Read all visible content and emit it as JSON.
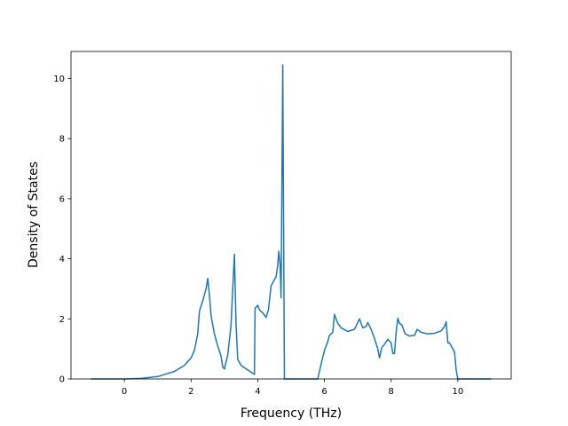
{
  "chart_data": {
    "type": "line",
    "title": "",
    "xlabel": "Frequency (THz)",
    "ylabel": "Density of States",
    "xlim": [
      -1.6,
      11.6
    ],
    "ylim": [
      0,
      10.9
    ],
    "x_ticks": [
      0,
      2,
      4,
      6,
      8,
      10
    ],
    "y_ticks": [
      0,
      2,
      4,
      6,
      8,
      10
    ],
    "grid": false,
    "legend": "none",
    "colors": {
      "line": "#1f77b4",
      "axes": "#000000",
      "background": "#ffffff"
    },
    "series": [
      {
        "points": [
          [
            -1.0,
            0.0
          ],
          [
            0.0,
            0.0
          ],
          [
            0.5,
            0.02
          ],
          [
            1.0,
            0.08
          ],
          [
            1.5,
            0.25
          ],
          [
            1.8,
            0.45
          ],
          [
            2.0,
            0.7
          ],
          [
            2.1,
            0.95
          ],
          [
            2.2,
            1.5
          ],
          [
            2.25,
            2.25
          ],
          [
            2.35,
            2.6
          ],
          [
            2.45,
            3.0
          ],
          [
            2.5,
            3.35
          ],
          [
            2.55,
            2.8
          ],
          [
            2.6,
            2.1
          ],
          [
            2.7,
            1.5
          ],
          [
            2.8,
            1.1
          ],
          [
            2.9,
            0.75
          ],
          [
            2.95,
            0.4
          ],
          [
            3.0,
            0.33
          ],
          [
            3.1,
            0.8
          ],
          [
            3.2,
            1.8
          ],
          [
            3.25,
            3.0
          ],
          [
            3.3,
            4.15
          ],
          [
            3.35,
            1.8
          ],
          [
            3.4,
            0.65
          ],
          [
            3.5,
            0.45
          ],
          [
            3.7,
            0.3
          ],
          [
            3.9,
            0.15
          ],
          [
            3.92,
            2.35
          ],
          [
            4.0,
            2.45
          ],
          [
            4.05,
            2.3
          ],
          [
            4.15,
            2.2
          ],
          [
            4.25,
            2.05
          ],
          [
            4.32,
            2.3
          ],
          [
            4.4,
            3.1
          ],
          [
            4.5,
            3.3
          ],
          [
            4.55,
            3.4
          ],
          [
            4.6,
            3.8
          ],
          [
            4.63,
            4.25
          ],
          [
            4.67,
            3.8
          ],
          [
            4.7,
            2.7
          ],
          [
            4.75,
            10.45
          ],
          [
            4.8,
            0.0
          ],
          [
            5.8,
            0.0
          ],
          [
            5.9,
            0.5
          ],
          [
            6.0,
            0.95
          ],
          [
            6.1,
            1.25
          ],
          [
            6.15,
            1.45
          ],
          [
            6.25,
            1.55
          ],
          [
            6.3,
            2.15
          ],
          [
            6.4,
            1.85
          ],
          [
            6.5,
            1.7
          ],
          [
            6.7,
            1.58
          ],
          [
            6.9,
            1.65
          ],
          [
            7.05,
            2.0
          ],
          [
            7.15,
            1.7
          ],
          [
            7.25,
            1.75
          ],
          [
            7.3,
            1.88
          ],
          [
            7.4,
            1.65
          ],
          [
            7.5,
            1.35
          ],
          [
            7.6,
            1.0
          ],
          [
            7.65,
            0.7
          ],
          [
            7.72,
            1.05
          ],
          [
            7.8,
            1.15
          ],
          [
            7.9,
            1.32
          ],
          [
            8.0,
            1.2
          ],
          [
            8.05,
            0.85
          ],
          [
            8.1,
            0.85
          ],
          [
            8.15,
            1.55
          ],
          [
            8.2,
            2.02
          ],
          [
            8.25,
            1.85
          ],
          [
            8.32,
            1.8
          ],
          [
            8.42,
            1.5
          ],
          [
            8.55,
            1.43
          ],
          [
            8.7,
            1.45
          ],
          [
            8.78,
            1.65
          ],
          [
            8.9,
            1.55
          ],
          [
            9.1,
            1.5
          ],
          [
            9.3,
            1.52
          ],
          [
            9.5,
            1.6
          ],
          [
            9.6,
            1.75
          ],
          [
            9.65,
            1.9
          ],
          [
            9.7,
            1.2
          ],
          [
            9.75,
            1.2
          ],
          [
            9.85,
            1.0
          ],
          [
            9.9,
            0.9
          ],
          [
            9.95,
            0.3
          ],
          [
            10.0,
            0.0
          ],
          [
            11.0,
            0.0
          ]
        ]
      }
    ]
  }
}
